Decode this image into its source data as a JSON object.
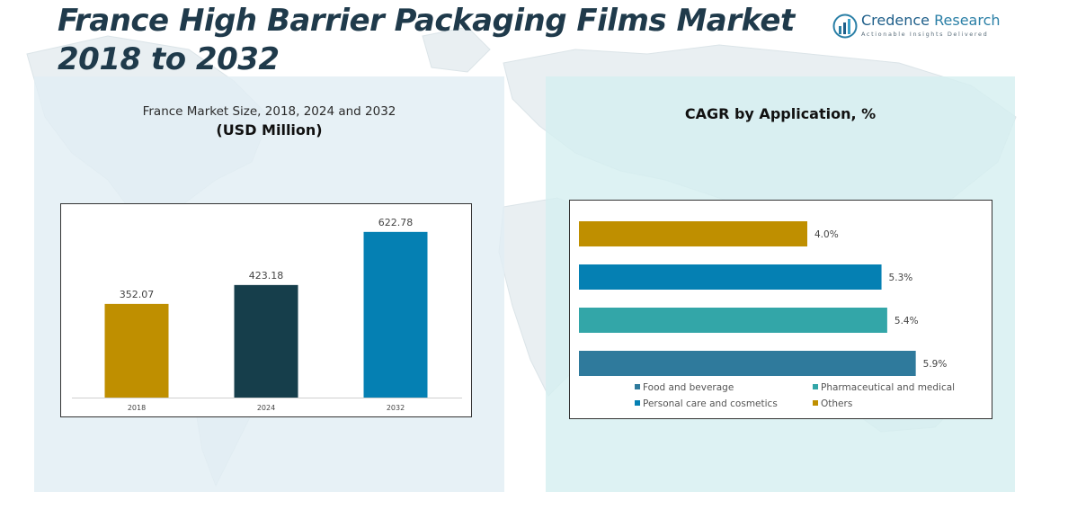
{
  "title_line1": "France High Barrier Packaging Films Market",
  "title_line2": "2018 to 2032",
  "logo": {
    "name_part1": "Credence",
    "name_part2": " Research",
    "tagline": "Actionable Insights Delivered"
  },
  "left_panel": {
    "subtitle": "France Market Size, 2018, 2024 and 2032",
    "unit": "(USD Million)"
  },
  "right_panel": {
    "title": "CAGR by Application, %"
  },
  "colors": {
    "gold": "#bf8f00",
    "dark_teal": "#163e4b",
    "blue": "#0580b3",
    "teal": "#33a6a8",
    "steel_blue": "#2f7a9c"
  },
  "chart_data": [
    {
      "type": "bar",
      "categories": [
        "2018",
        "2024",
        "2032"
      ],
      "values": [
        352.07,
        423.18,
        622.78
      ],
      "value_labels": [
        "352.07",
        "423.18",
        "622.78"
      ],
      "bar_colors": [
        "#bf8f00",
        "#163e4b",
        "#0580b3"
      ],
      "ylim": [
        0,
        700
      ],
      "grid": false,
      "legend": "none"
    },
    {
      "type": "bar",
      "orientation": "horizontal",
      "categories": [
        "Others",
        "Personal care and cosmetics",
        "Pharmaceutical and medical",
        "Food and beverage"
      ],
      "values": [
        4.0,
        5.3,
        5.4,
        5.9
      ],
      "value_labels": [
        "4.0%",
        "5.3%",
        "5.4%",
        "5.9%"
      ],
      "bar_colors": [
        "#bf8f00",
        "#0580b3",
        "#33a6a8",
        "#2f7a9c"
      ],
      "xlim": [
        0,
        6.5
      ],
      "grid": false,
      "legend": "bottom",
      "legend_entries": [
        {
          "label": "Food and beverage",
          "color": "#2f7a9c"
        },
        {
          "label": "Pharmaceutical and medical",
          "color": "#33a6a8"
        },
        {
          "label": "Personal care and cosmetics",
          "color": "#0580b3"
        },
        {
          "label": "Others",
          "color": "#bf8f00"
        }
      ]
    }
  ]
}
